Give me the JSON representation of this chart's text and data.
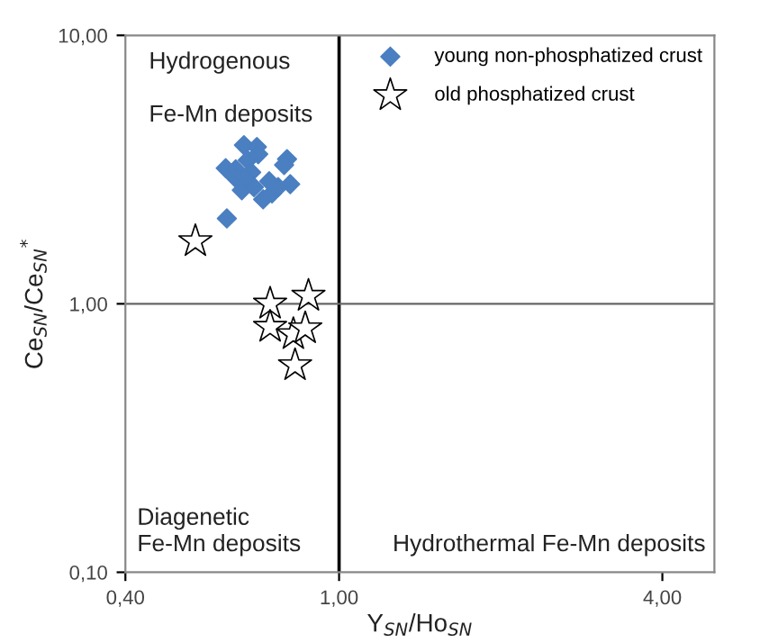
{
  "chart_data": {
    "type": "scatter",
    "xlabel": "Y$_{SN}$/Ho$_{SN}$",
    "ylabel": "Ce$_{SN}$/Ce$_{SN}$$^{*}$",
    "log": "xy",
    "xlim": [
      0.4,
      5
    ],
    "ylim": [
      0.1,
      10
    ],
    "xticks": [
      {
        "value": 0.4,
        "label": "0,40"
      },
      {
        "value": 1,
        "label": "1,00"
      },
      {
        "value": 4,
        "label": "4,00"
      }
    ],
    "yticks": [
      {
        "value": 0.1,
        "label": "0,10"
      },
      {
        "value": 1,
        "label": "1,00"
      },
      {
        "value": 10,
        "label": "10,00"
      }
    ],
    "grid": false,
    "legend": "top right",
    "ref_lines": [
      {
        "axis": "x",
        "value": 1,
        "color": "#000000"
      },
      {
        "axis": "y",
        "value": 1,
        "color": "#666666"
      }
    ],
    "annotations": [
      "Hydrogenous\n\nFe-Mn deposits",
      "Diagenetic\nFe-Mn deposits",
      "Hydrothermal Fe-Mn deposits"
    ],
    "series": [
      {
        "name": "young non-phosphatized crust",
        "color": "#4a7fc1",
        "marker": "diamond",
        "x": [
          0.665,
          0.703,
          0.615,
          0.642,
          0.676,
          0.707,
          0.686,
          0.8,
          0.79,
          0.811,
          0.659,
          0.694,
          0.722,
          0.75,
          0.77,
          0.642,
          0.668,
          0.741,
          0.618
        ],
        "values": [
          3.9,
          3.84,
          3.2,
          3.17,
          3.43,
          3.61,
          3.09,
          3.46,
          3.29,
          2.79,
          2.65,
          2.72,
          2.45,
          2.58,
          2.72,
          2.94,
          2.94,
          2.86,
          2.08
        ]
      },
      {
        "name": "old phosphatized crust",
        "color": "#ffffff",
        "marker": "star",
        "x": [
          0.54,
          0.744,
          0.877,
          0.744,
          0.822,
          0.865,
          0.828
        ],
        "values": [
          1.71,
          1.0,
          1.07,
          0.82,
          0.77,
          0.81,
          0.59
        ]
      }
    ]
  }
}
